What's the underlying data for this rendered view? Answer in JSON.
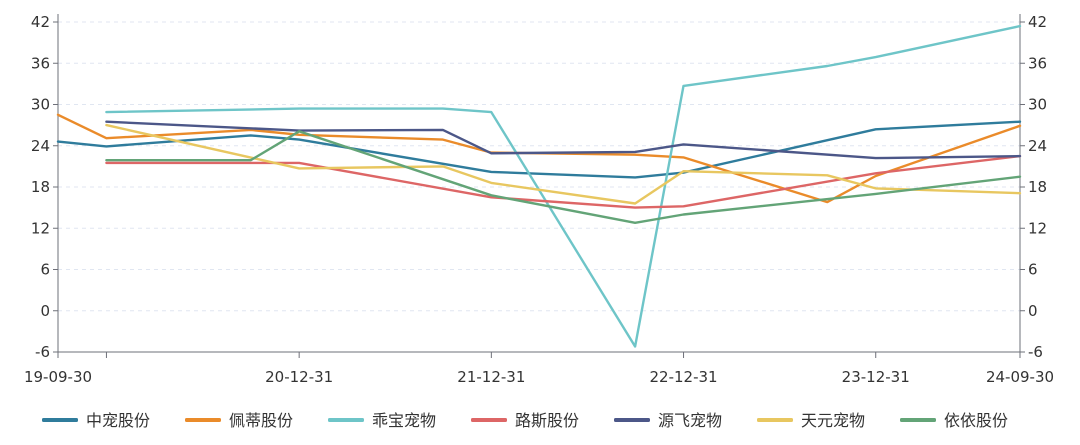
{
  "chart_data": {
    "type": "line",
    "title": "",
    "xlabel": "",
    "ylabel": "",
    "x_ticks": [
      "19-09-30",
      "20-12-31",
      "21-12-31",
      "22-12-31",
      "23-12-31",
      "24-09-30"
    ],
    "x_range": [
      "2019-09-30",
      "2024-09-30"
    ],
    "y_ticks": [
      -6,
      0,
      6,
      12,
      18,
      24,
      30,
      36,
      42
    ],
    "ylim": [
      -6,
      42
    ],
    "grid": "horizontal dashed",
    "legend_position": "bottom",
    "series": [
      {
        "name": "中宠股份",
        "color": "#2f7c9c",
        "points": [
          [
            "2019-09-30",
            24.6
          ],
          [
            "2019-12-31",
            23.9
          ],
          [
            "2020-09-30",
            25.5
          ],
          [
            "2020-12-31",
            24.9
          ],
          [
            "2021-12-31",
            20.2
          ],
          [
            "2022-09-30",
            19.4
          ],
          [
            "2022-12-31",
            20.1
          ],
          [
            "2023-12-31",
            26.4
          ],
          [
            "2024-09-30",
            27.5
          ]
        ]
      },
      {
        "name": "佩蒂股份",
        "color": "#ea8b2a",
        "points": [
          [
            "2019-09-30",
            28.5
          ],
          [
            "2019-12-31",
            25.1
          ],
          [
            "2020-09-30",
            26.3
          ],
          [
            "2020-12-31",
            25.6
          ],
          [
            "2021-09-30",
            24.9
          ],
          [
            "2021-12-31",
            23.0
          ],
          [
            "2022-09-30",
            22.7
          ],
          [
            "2022-12-31",
            22.3
          ],
          [
            "2023-09-30",
            15.8
          ],
          [
            "2023-12-31",
            19.6
          ],
          [
            "2024-09-30",
            26.9
          ]
        ]
      },
      {
        "name": "乖宝宠物",
        "color": "#6ec5c8",
        "points": [
          [
            "2019-12-31",
            28.9
          ],
          [
            "2020-12-31",
            29.4
          ],
          [
            "2021-09-30",
            29.4
          ],
          [
            "2021-12-31",
            28.9
          ],
          [
            "2022-09-30",
            -5.2
          ],
          [
            "2022-12-31",
            32.7
          ],
          [
            "2023-09-30",
            35.6
          ],
          [
            "2023-12-31",
            36.9
          ],
          [
            "2024-09-30",
            41.4
          ]
        ]
      },
      {
        "name": "路斯股份",
        "color": "#dd6666",
        "points": [
          [
            "2019-12-31",
            21.5
          ],
          [
            "2020-12-31",
            21.5
          ],
          [
            "2021-12-31",
            16.5
          ],
          [
            "2022-09-30",
            15.0
          ],
          [
            "2022-12-31",
            15.2
          ],
          [
            "2023-12-31",
            20.0
          ],
          [
            "2024-09-30",
            22.5
          ]
        ]
      },
      {
        "name": "源飞宠物",
        "color": "#4c5788",
        "points": [
          [
            "2019-12-31",
            27.5
          ],
          [
            "2020-12-31",
            26.2
          ],
          [
            "2021-09-30",
            26.3
          ],
          [
            "2021-12-31",
            22.9
          ],
          [
            "2022-09-30",
            23.1
          ],
          [
            "2022-12-31",
            24.2
          ],
          [
            "2023-12-31",
            22.2
          ],
          [
            "2024-09-30",
            22.5
          ]
        ]
      },
      {
        "name": "天元宠物",
        "color": "#e8c760",
        "points": [
          [
            "2019-12-31",
            27.0
          ],
          [
            "2020-12-31",
            20.7
          ],
          [
            "2021-09-30",
            21.0
          ],
          [
            "2021-12-31",
            18.6
          ],
          [
            "2022-09-30",
            15.6
          ],
          [
            "2022-12-31",
            20.3
          ],
          [
            "2023-09-30",
            19.7
          ],
          [
            "2023-12-31",
            17.8
          ],
          [
            "2024-09-30",
            17.1
          ]
        ]
      },
      {
        "name": "依依股份",
        "color": "#63a477",
        "points": [
          [
            "2019-12-31",
            21.9
          ],
          [
            "2020-09-30",
            21.9
          ],
          [
            "2020-12-31",
            26.1
          ],
          [
            "2021-12-31",
            16.8
          ],
          [
            "2022-09-30",
            12.8
          ],
          [
            "2022-12-31",
            14.0
          ],
          [
            "2023-12-31",
            17.0
          ],
          [
            "2024-09-30",
            19.5
          ]
        ]
      }
    ]
  },
  "colors": {
    "axis": "#6e7079",
    "grid": "#e0e6f1",
    "text": "#333333"
  }
}
